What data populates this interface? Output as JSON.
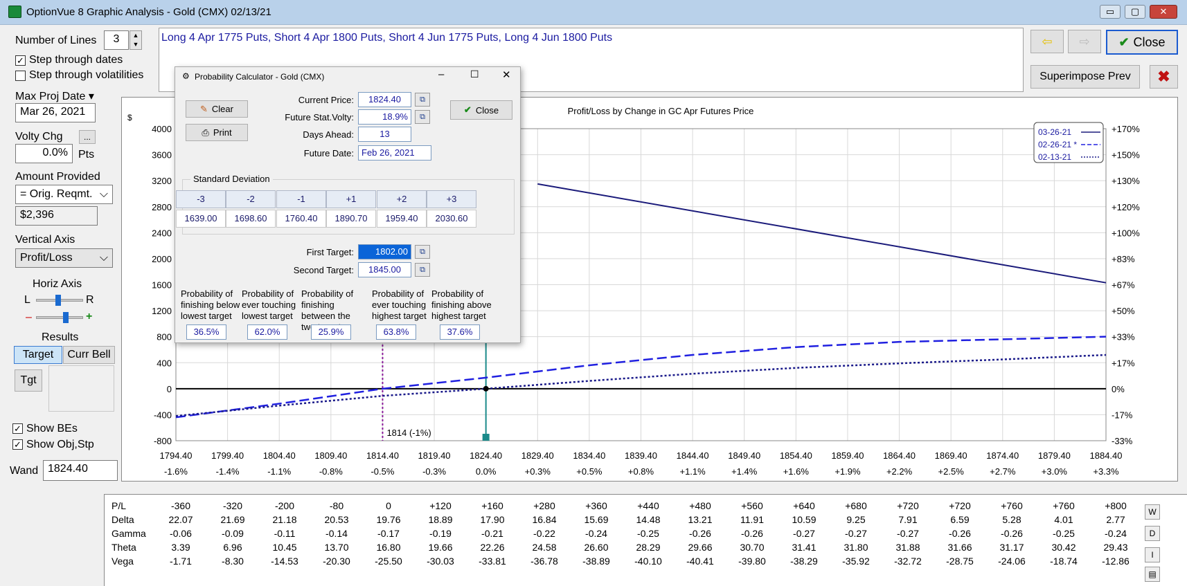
{
  "window": {
    "title": "OptionVue 8 Graphic Analysis - Gold (CMX)  02/13/21",
    "minimize": "▭",
    "maximize": "▢",
    "close": "✕"
  },
  "left": {
    "number_of_lines_label": "Number of Lines",
    "number_of_lines_value": "3",
    "step_dates_label": "Step through dates",
    "step_vols_label": "Step through volatilities",
    "max_proj_date_label": "Max Proj Date",
    "max_proj_date_value": "Mar 26, 2021",
    "volty_chg_label": "Volty Chg",
    "volty_chg_btn": "...",
    "volty_chg_value": "0.0%",
    "pts_label": "Pts",
    "amount_provided_label": "Amount Provided",
    "amount_provided_value": "= Orig. Reqmt.",
    "amount_value": "$2,396",
    "vertical_axis_label": "Vertical Axis",
    "vertical_axis_value": "Profit/Loss",
    "horiz_axis_label": "Horiz Axis",
    "l_label": "L",
    "r_label": "R",
    "minus_label": "–",
    "plus_label": "+",
    "results_label": "Results",
    "target_tab": "Target",
    "curr_bell_tab": "Curr Bell",
    "tgt_button": "Tgt",
    "show_bes_label": "Show BEs",
    "show_obj_label": "Show Obj,Stp",
    "wand_label": "Wand",
    "wand_value": "1824.40"
  },
  "strategy": "Long 4 Apr 1775 Puts, Short 4 Apr 1800 Puts, Short 4 Jun 1775 Puts, Long 4 Jun 1800 Puts",
  "right_buttons": {
    "close_label": "Close",
    "superimpose_label": "Superimpose Prev"
  },
  "dialog": {
    "title": "Probability Calculator - Gold (CMX)",
    "clear_label": "Clear",
    "print_label": "Print",
    "close_label": "Close",
    "current_price_label": "Current Price:",
    "current_price_value": "1824.40",
    "future_volty_label": "Future Stat.Volty:",
    "future_volty_value": "18.9%",
    "days_ahead_label": "Days Ahead:",
    "days_ahead_value": "13",
    "future_date_label": "Future Date:",
    "future_date_value": "Feb 26, 2021",
    "std_dev_label": "Standard Deviation",
    "sd_headers": [
      "-3",
      "-2",
      "-1",
      "+1",
      "+2",
      "+3"
    ],
    "sd_values": [
      "1639.00",
      "1698.60",
      "1760.40",
      "1890.70",
      "1959.40",
      "2030.60"
    ],
    "first_target_label": "First Target:",
    "first_target_value": "1802.00",
    "second_target_label": "Second Target:",
    "second_target_value": "1845.00",
    "prob_labels": [
      "Probability of finishing below lowest target",
      "Probability of ever touching lowest target",
      "Probability of finishing between the two targets",
      "Probability of ever touching highest target",
      "Probability of finishing above highest target"
    ],
    "prob_values": [
      "36.5%",
      "62.0%",
      "25.9%",
      "63.8%",
      "37.6%"
    ]
  },
  "chart_data": {
    "type": "line",
    "title": "Profit/Loss by Change in GC Apr Futures Price",
    "ylabel": "$",
    "xlim": [
      1794.4,
      1884.4
    ],
    "ylim": [
      -800,
      4000
    ],
    "x_ticks": [
      "1794.40",
      "1799.40",
      "1804.40",
      "1809.40",
      "1814.40",
      "1819.40",
      "1824.40",
      "1829.40",
      "1834.40",
      "1839.40",
      "1844.40",
      "1849.40",
      "1854.40",
      "1859.40",
      "1864.40",
      "1869.40",
      "1874.40",
      "1879.40",
      "1884.40"
    ],
    "x_pct_ticks": [
      "-1.6%",
      "-1.4%",
      "-1.1%",
      "-0.8%",
      "-0.5%",
      "-0.3%",
      "0.0%",
      "+0.3%",
      "+0.5%",
      "+0.8%",
      "+1.1%",
      "+1.4%",
      "+1.6%",
      "+1.9%",
      "+2.2%",
      "+2.5%",
      "+2.7%",
      "+3.0%",
      "+3.3%"
    ],
    "y_ticks": [
      "4000",
      "3600",
      "3200",
      "2800",
      "2400",
      "2000",
      "1600",
      "1200",
      "800",
      "400",
      "0",
      "-400",
      "-800"
    ],
    "y_right_ticks": [
      "+170%",
      "+150%",
      "+130%",
      "+120%",
      "+100%",
      "+83%",
      "+67%",
      "+50%",
      "+33%",
      "+17%",
      "0%",
      "-17%",
      "-33%"
    ],
    "breakeven_label": "1814 (-1%)",
    "wand_x": 1824.4,
    "breakeven_x": 1814.4,
    "legend": [
      "03-26-21",
      "02-26-21 *",
      "02-13-21"
    ],
    "series": [
      {
        "name": "03-26-21",
        "color": "#1a1a7a",
        "dash": "solid",
        "x": [
          1829.4,
          1884.4
        ],
        "y": [
          3150,
          1630
        ]
      },
      {
        "name": "02-26-21 *",
        "color": "#2020e0",
        "dash": "dashed",
        "x": [
          1794.4,
          1804.4,
          1814.4,
          1824.4,
          1834.4,
          1844.4,
          1854.4,
          1864.4,
          1874.4,
          1884.4
        ],
        "y": [
          -440,
          -230,
          0,
          170,
          360,
          520,
          640,
          720,
          760,
          800
        ]
      },
      {
        "name": "02-13-21",
        "color": "#1a1a8a",
        "dash": "dotted",
        "x": [
          1794.4,
          1804.4,
          1814.4,
          1824.4,
          1834.4,
          1844.4,
          1854.4,
          1864.4,
          1874.4,
          1884.4
        ],
        "y": [
          -420,
          -260,
          -110,
          0,
          120,
          230,
          320,
          390,
          450,
          520
        ]
      }
    ]
  },
  "table": {
    "rows": [
      {
        "label": "P/L",
        "values": [
          "-360",
          "-320",
          "-200",
          "-80",
          "0",
          "+120",
          "+160",
          "+280",
          "+360",
          "+440",
          "+480",
          "+560",
          "+640",
          "+680",
          "+720",
          "+720",
          "+760",
          "+760",
          "+800"
        ]
      },
      {
        "label": "Delta",
        "values": [
          "22.07",
          "21.69",
          "21.18",
          "20.53",
          "19.76",
          "18.89",
          "17.90",
          "16.84",
          "15.69",
          "14.48",
          "13.21",
          "11.91",
          "10.59",
          "9.25",
          "7.91",
          "6.59",
          "5.28",
          "4.01",
          "2.77"
        ]
      },
      {
        "label": "Gamma",
        "values": [
          "-0.06",
          "-0.09",
          "-0.11",
          "-0.14",
          "-0.17",
          "-0.19",
          "-0.21",
          "-0.22",
          "-0.24",
          "-0.25",
          "-0.26",
          "-0.26",
          "-0.27",
          "-0.27",
          "-0.27",
          "-0.26",
          "-0.26",
          "-0.25",
          "-0.24"
        ]
      },
      {
        "label": "Theta",
        "values": [
          "3.39",
          "6.96",
          "10.45",
          "13.70",
          "16.80",
          "19.66",
          "22.26",
          "24.58",
          "26.60",
          "28.29",
          "29.66",
          "30.70",
          "31.41",
          "31.80",
          "31.88",
          "31.66",
          "31.17",
          "30.42",
          "29.43"
        ]
      },
      {
        "label": "Vega",
        "values": [
          "-1.71",
          "-8.30",
          "-14.53",
          "-20.30",
          "-25.50",
          "-30.03",
          "-33.81",
          "-36.78",
          "-38.89",
          "-40.10",
          "-40.41",
          "-39.80",
          "-38.29",
          "-35.92",
          "-32.72",
          "-28.75",
          "-24.06",
          "-18.74",
          "-12.86"
        ]
      }
    ],
    "side_buttons": [
      "W",
      "D",
      "I",
      "▤"
    ]
  }
}
